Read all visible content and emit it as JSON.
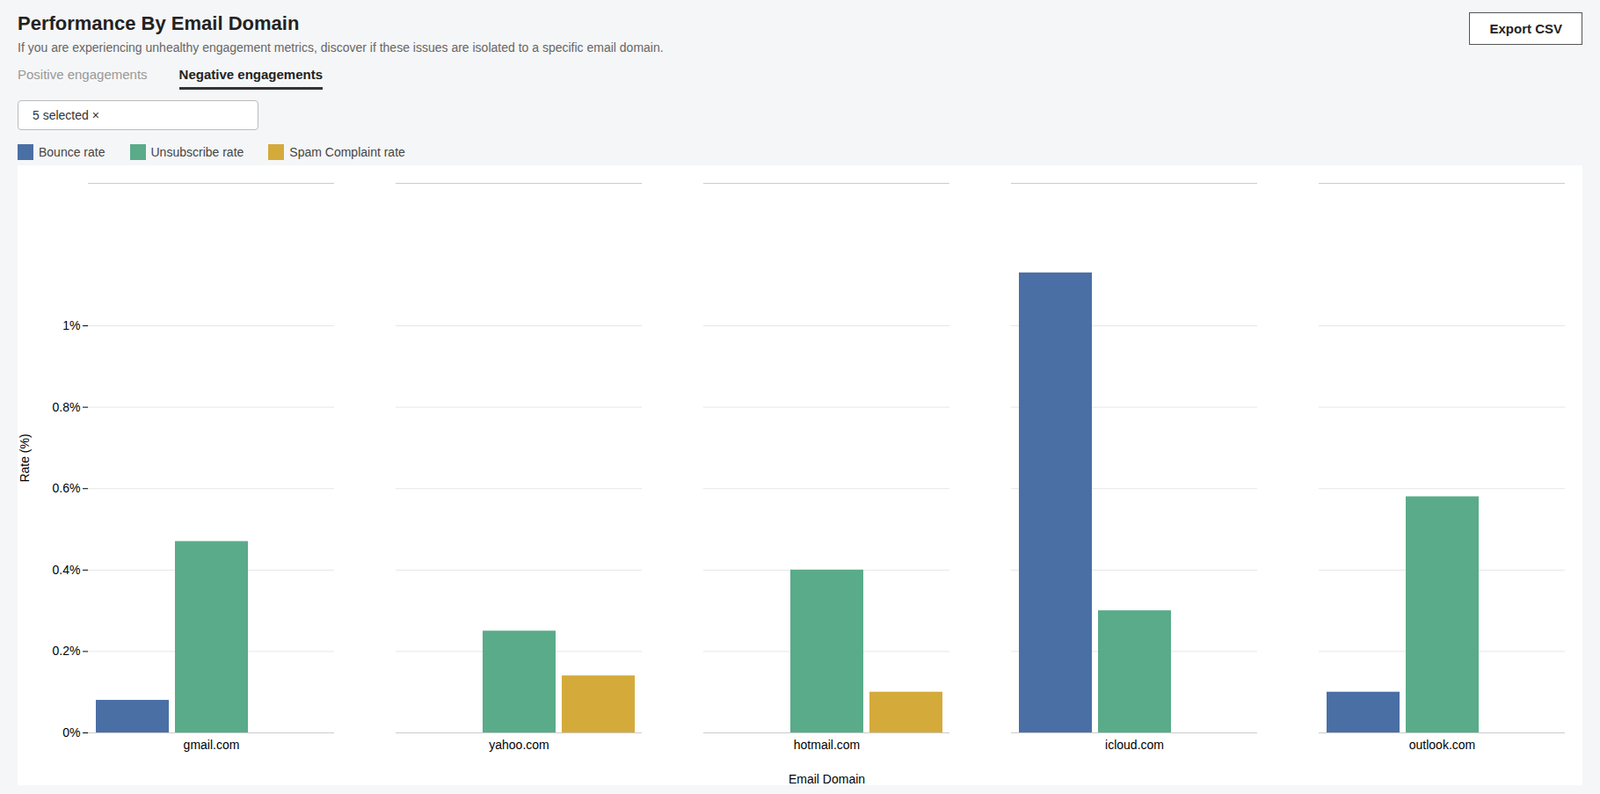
{
  "chart_data": {
    "type": "bar",
    "title": "Performance By Email Domain",
    "subtitle": "If you are experiencing unhealthy engagement metrics, discover if these issues are isolated to a specific email domain.",
    "annotations": [
      "Positive engagements",
      "Negative engagements",
      "5 selected ×",
      "Export CSV"
    ],
    "xlabel": "Email Domain",
    "ylabel": "Rate (%)",
    "categories": [
      "gmail.com",
      "yahoo.com",
      "hotmail.com",
      "icloud.com",
      "outlook.com"
    ],
    "series": [
      {
        "name": "Bounce rate",
        "color": "#4a6fa5",
        "values": [
          0.08,
          0.0,
          0.0,
          1.13,
          0.1
        ]
      },
      {
        "name": "Unsubscribe rate",
        "color": "#5aab8a",
        "values": [
          0.47,
          0.25,
          0.4,
          0.3,
          0.58
        ]
      },
      {
        "name": "Spam Complaint rate",
        "color": "#d4aa3b",
        "values": [
          0.0,
          0.14,
          0.1,
          0.0,
          0.0
        ]
      }
    ],
    "ylim": [
      0,
      1.35
    ],
    "yticks": [
      {
        "value": 0.0,
        "label": "0%"
      },
      {
        "value": 0.2,
        "label": "0.2%"
      },
      {
        "value": 0.4,
        "label": "0.4%"
      },
      {
        "value": 0.6,
        "label": "0.6%"
      },
      {
        "value": 0.8,
        "label": "0.8%"
      },
      {
        "value": 1.0,
        "label": "1%"
      }
    ],
    "grid": true,
    "legend": "upper left"
  }
}
